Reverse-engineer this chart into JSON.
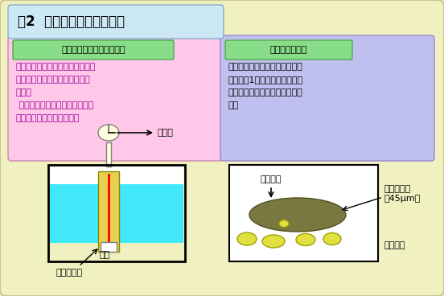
{
  "title": "図2  目詰まり点の測定方法",
  "title_bg": "#cce8f4",
  "outer_bg": "#f0f0c0",
  "left_box_title": "目詰まり点とその測定意義",
  "left_box_title_bg": "#88dd88",
  "left_box_bg": "#ffc8e8",
  "left_box_text_line1": "油を低温にしたとき、フィルター",
  "left_box_text_line2": "を通して流れにくくなる温度を",
  "left_box_text_line3": "いう。",
  "left_box_text_line4": " ディーゼル車のプレフィルター",
  "left_box_text_line5": "の閉塞を知る目安となる。",
  "left_box_text_color": "#990099",
  "right_box_title": "目詰まり点測定",
  "right_box_title_bg": "#88dd88",
  "right_box_bg": "#c0c0f0",
  "right_box_text_line1": "油を冷やして、ポンプで油を吸",
  "right_box_text_line2": "い上げ、1分間に一定量が通過",
  "right_box_text_line3": "できなくなる最初の温度を求め",
  "right_box_text_line4": "る。",
  "right_box_text_color": "#000000",
  "pump_label": "ポンプ",
  "filter_label": "フィルター",
  "coolant_label": "冷媒",
  "oil_flow_label": "油の流れ",
  "filter_label2a": "フィルター",
  "filter_label2b": "（45μm）",
  "wax_label": "ワックス",
  "liquid_color": "#40e8f8",
  "tube_color": "#e8d050",
  "filter_disk_color": "#787840",
  "wax_color": "#e0e040",
  "wax_edge_color": "#a0a000"
}
